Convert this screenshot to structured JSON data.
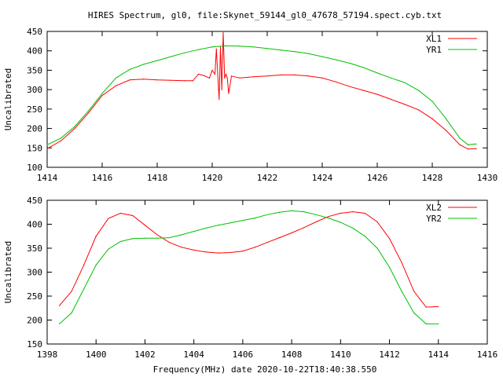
{
  "figure": {
    "title": "HIRES Spectrum, gl0, file:Skynet_59144_gl0_47678_57194.spect.cyb.txt",
    "xlabel": "Frequency(MHz) date 2020-10-22T18:40:38.550"
  },
  "chart_data": [
    {
      "type": "line",
      "ylabel": "Uncalibrated",
      "xlim": [
        1414,
        1430
      ],
      "ylim": [
        100,
        450
      ],
      "xticks": [
        1414,
        1416,
        1418,
        1420,
        1422,
        1424,
        1426,
        1428,
        1430
      ],
      "yticks": [
        100,
        150,
        200,
        250,
        300,
        350,
        400,
        450
      ],
      "grid": false,
      "legend_position": "top-right",
      "series": [
        {
          "name": "XL1",
          "color": "#ff0000",
          "x": [
            1414.0,
            1414.5,
            1415.0,
            1415.5,
            1416.0,
            1416.5,
            1417.0,
            1417.5,
            1418.0,
            1418.5,
            1419.0,
            1419.3,
            1419.5,
            1419.7,
            1419.9,
            1420.0,
            1420.1,
            1420.15,
            1420.2,
            1420.25,
            1420.3,
            1420.35,
            1420.4,
            1420.45,
            1420.5,
            1420.55,
            1420.6,
            1420.7,
            1421.0,
            1421.5,
            1422.0,
            1422.5,
            1423.0,
            1423.5,
            1424.0,
            1424.5,
            1425.0,
            1425.5,
            1426.0,
            1426.5,
            1427.0,
            1427.5,
            1428.0,
            1428.5,
            1429.0,
            1429.3,
            1429.6
          ],
          "y": [
            148,
            168,
            200,
            240,
            285,
            310,
            325,
            327,
            325,
            324,
            323,
            323,
            340,
            336,
            330,
            350,
            340,
            405,
            340,
            275,
            410,
            300,
            447,
            330,
            340,
            330,
            290,
            335,
            330,
            333,
            335,
            338,
            338,
            335,
            330,
            320,
            308,
            298,
            288,
            275,
            262,
            248,
            225,
            195,
            158,
            147,
            148
          ]
        },
        {
          "name": "YR1",
          "color": "#00c000",
          "x": [
            1414.0,
            1414.5,
            1415.0,
            1415.5,
            1416.0,
            1416.5,
            1417.0,
            1417.5,
            1418.0,
            1418.5,
            1419.0,
            1419.5,
            1420.0,
            1420.5,
            1421.0,
            1421.5,
            1422.0,
            1422.5,
            1423.0,
            1423.5,
            1424.0,
            1424.5,
            1425.0,
            1425.5,
            1426.0,
            1426.5,
            1427.0,
            1427.5,
            1428.0,
            1428.5,
            1429.0,
            1429.3,
            1429.6
          ],
          "y": [
            158,
            175,
            205,
            245,
            290,
            330,
            352,
            365,
            375,
            385,
            395,
            403,
            410,
            413,
            412,
            410,
            406,
            402,
            398,
            393,
            385,
            377,
            368,
            357,
            343,
            330,
            318,
            298,
            270,
            225,
            175,
            158,
            160
          ]
        }
      ]
    },
    {
      "type": "line",
      "ylabel": "Uncalibrated",
      "xlim": [
        1398,
        1416
      ],
      "ylim": [
        150,
        450
      ],
      "xticks": [
        1398,
        1400,
        1402,
        1404,
        1406,
        1408,
        1410,
        1412,
        1414,
        1416
      ],
      "yticks": [
        150,
        200,
        250,
        300,
        350,
        400,
        450
      ],
      "grid": false,
      "legend_position": "top-right",
      "series": [
        {
          "name": "XL2",
          "color": "#ff0000",
          "x": [
            1398.5,
            1399.0,
            1399.5,
            1400.0,
            1400.5,
            1401.0,
            1401.5,
            1402.0,
            1402.5,
            1403.0,
            1403.5,
            1404.0,
            1404.5,
            1405.0,
            1405.5,
            1406.0,
            1406.5,
            1407.0,
            1407.5,
            1408.0,
            1408.5,
            1409.0,
            1409.5,
            1410.0,
            1410.5,
            1411.0,
            1411.5,
            1412.0,
            1412.5,
            1413.0,
            1413.5,
            1414.0
          ],
          "y": [
            230,
            260,
            315,
            375,
            412,
            423,
            418,
            398,
            378,
            362,
            352,
            346,
            342,
            340,
            341,
            344,
            352,
            362,
            372,
            382,
            393,
            405,
            416,
            423,
            426,
            423,
            405,
            370,
            320,
            260,
            227,
            228
          ]
        },
        {
          "name": "YR2",
          "color": "#00c000",
          "x": [
            1398.5,
            1399.0,
            1399.5,
            1400.0,
            1400.5,
            1401.0,
            1401.5,
            1402.0,
            1402.5,
            1403.0,
            1403.5,
            1404.0,
            1404.5,
            1405.0,
            1405.5,
            1406.0,
            1406.5,
            1407.0,
            1407.5,
            1408.0,
            1408.5,
            1409.0,
            1409.5,
            1410.0,
            1410.5,
            1411.0,
            1411.5,
            1412.0,
            1412.5,
            1413.0,
            1413.5,
            1414.0
          ],
          "y": [
            192,
            215,
            265,
            315,
            348,
            364,
            370,
            371,
            371,
            372,
            378,
            385,
            392,
            398,
            403,
            408,
            413,
            420,
            425,
            428,
            426,
            420,
            413,
            404,
            392,
            375,
            350,
            310,
            260,
            215,
            192,
            192
          ]
        }
      ]
    }
  ]
}
